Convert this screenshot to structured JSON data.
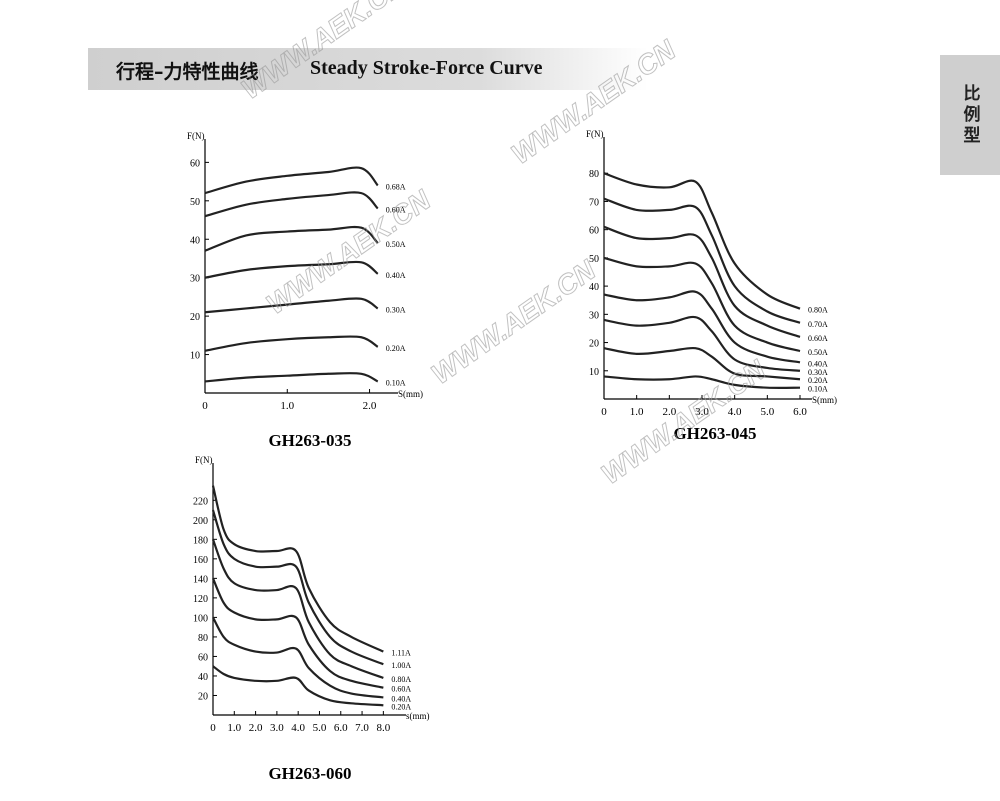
{
  "header": {
    "title_cn": "行程–力特性曲线",
    "title_en": "Steady Stroke-Force Curve"
  },
  "side_tab": "比例型",
  "watermark": "WWW.AEK.CN",
  "chart_data": [
    {
      "type": "line",
      "title": "GH263-035",
      "xlabel": "S(mm)",
      "ylabel": "F(N)",
      "color": "#222222",
      "x": [
        0,
        0.5,
        1.0,
        1.5,
        1.9,
        2.1
      ],
      "xlim": [
        0,
        2.2
      ],
      "xticks": [
        0,
        {
          "value": 1,
          "label": "1.0"
        },
        {
          "value": 2,
          "label": "2.0"
        }
      ],
      "ylim": [
        0,
        64
      ],
      "yticks": [
        10,
        20,
        30,
        40,
        50,
        60
      ],
      "series": [
        {
          "name": "0.68A",
          "values": [
            52,
            55,
            56.5,
            57.5,
            58.5,
            54
          ]
        },
        {
          "name": "0.60A",
          "values": [
            46,
            49,
            50.5,
            51.5,
            52,
            48
          ]
        },
        {
          "name": "0.50A",
          "values": [
            37,
            41,
            42,
            42.5,
            43,
            39
          ]
        },
        {
          "name": "0.40A",
          "values": [
            30,
            32,
            33,
            33.5,
            34,
            31
          ]
        },
        {
          "name": "0.30A",
          "values": [
            21,
            22,
            23,
            24,
            24.5,
            22
          ]
        },
        {
          "name": "0.20A",
          "values": [
            11,
            13,
            14,
            14.5,
            14.5,
            12
          ]
        },
        {
          "name": "0.10A",
          "values": [
            3,
            4,
            4.5,
            5,
            5,
            3
          ]
        }
      ]
    },
    {
      "type": "line",
      "title": "GH263-045",
      "xlabel": "S(mm)",
      "ylabel": "F(N)",
      "color": "#222222",
      "x": [
        0,
        1,
        2,
        2.8,
        3.3,
        4,
        5,
        6
      ],
      "xlim": [
        0,
        6
      ],
      "xticks": [
        0,
        {
          "value": 1,
          "label": "1.0"
        },
        {
          "value": 2,
          "label": "2.0"
        },
        {
          "value": 3,
          "label": "3.0"
        },
        {
          "value": 4,
          "label": "4.0"
        },
        {
          "value": 5,
          "label": "5.0"
        },
        {
          "value": 6,
          "label": "6.0"
        }
      ],
      "ylim": [
        0,
        90
      ],
      "yticks": [
        10,
        20,
        30,
        40,
        50,
        60,
        70,
        80
      ],
      "series": [
        {
          "name": "0.80A",
          "values": [
            80,
            76,
            75,
            77,
            66,
            48,
            37,
            32
          ]
        },
        {
          "name": "0.70A",
          "values": [
            71,
            67,
            67,
            68,
            58,
            40,
            31,
            27
          ]
        },
        {
          "name": "0.60A",
          "values": [
            61,
            57,
            57,
            58,
            50,
            33,
            26,
            22
          ]
        },
        {
          "name": "0.50A",
          "values": [
            50,
            47,
            47,
            48,
            41,
            26,
            20,
            17
          ]
        },
        {
          "name": "0.40A",
          "values": [
            37,
            35,
            36,
            38,
            32,
            20,
            15,
            13
          ]
        },
        {
          "name": "0.30A",
          "values": [
            28,
            26,
            27,
            29,
            24,
            14,
            11,
            10
          ]
        },
        {
          "name": "0.20A",
          "values": [
            18,
            16,
            17,
            18,
            15,
            9,
            8,
            7
          ]
        },
        {
          "name": "0.10A",
          "values": [
            8,
            7,
            7,
            8,
            7,
            5,
            4,
            4
          ]
        }
      ]
    },
    {
      "type": "line",
      "title": "GH263-060",
      "xlabel": "s(mm)",
      "ylabel": "F(N)",
      "color": "#222222",
      "x": [
        0,
        0.5,
        1,
        2,
        3,
        3.9,
        4.5,
        5.5,
        6.5,
        8
      ],
      "xlim": [
        0,
        8.5
      ],
      "xticks": [
        0,
        {
          "value": 1,
          "label": "1.0"
        },
        {
          "value": 2,
          "label": "2.0"
        },
        {
          "value": 3,
          "label": "3.0"
        },
        {
          "value": 4,
          "label": "4.0"
        },
        {
          "value": 5,
          "label": "5.0"
        },
        {
          "value": 6,
          "label": "6.0"
        },
        {
          "value": 7,
          "label": "7.0"
        },
        {
          "value": 8,
          "label": "8.0"
        }
      ],
      "ylim": [
        0,
        250
      ],
      "yticks": [
        20,
        40,
        60,
        80,
        100,
        120,
        140,
        160,
        180,
        200,
        220
      ],
      "series": [
        {
          "name": "1.11A",
          "values": [
            235,
            190,
            175,
            168,
            168,
            168,
            130,
            95,
            80,
            65
          ]
        },
        {
          "name": "1.00A",
          "values": [
            210,
            175,
            160,
            152,
            152,
            152,
            115,
            80,
            65,
            52
          ]
        },
        {
          "name": "0.80A",
          "values": [
            180,
            150,
            135,
            128,
            128,
            130,
            95,
            62,
            50,
            38
          ]
        },
        {
          "name": "0.60A",
          "values": [
            140,
            115,
            105,
            98,
            98,
            100,
            72,
            45,
            35,
            28
          ]
        },
        {
          "name": "0.40A",
          "values": [
            100,
            80,
            72,
            65,
            64,
            68,
            48,
            30,
            22,
            18
          ]
        },
        {
          "name": "0.20A",
          "values": [
            50,
            42,
            38,
            35,
            35,
            38,
            25,
            15,
            12,
            10
          ]
        }
      ]
    }
  ]
}
